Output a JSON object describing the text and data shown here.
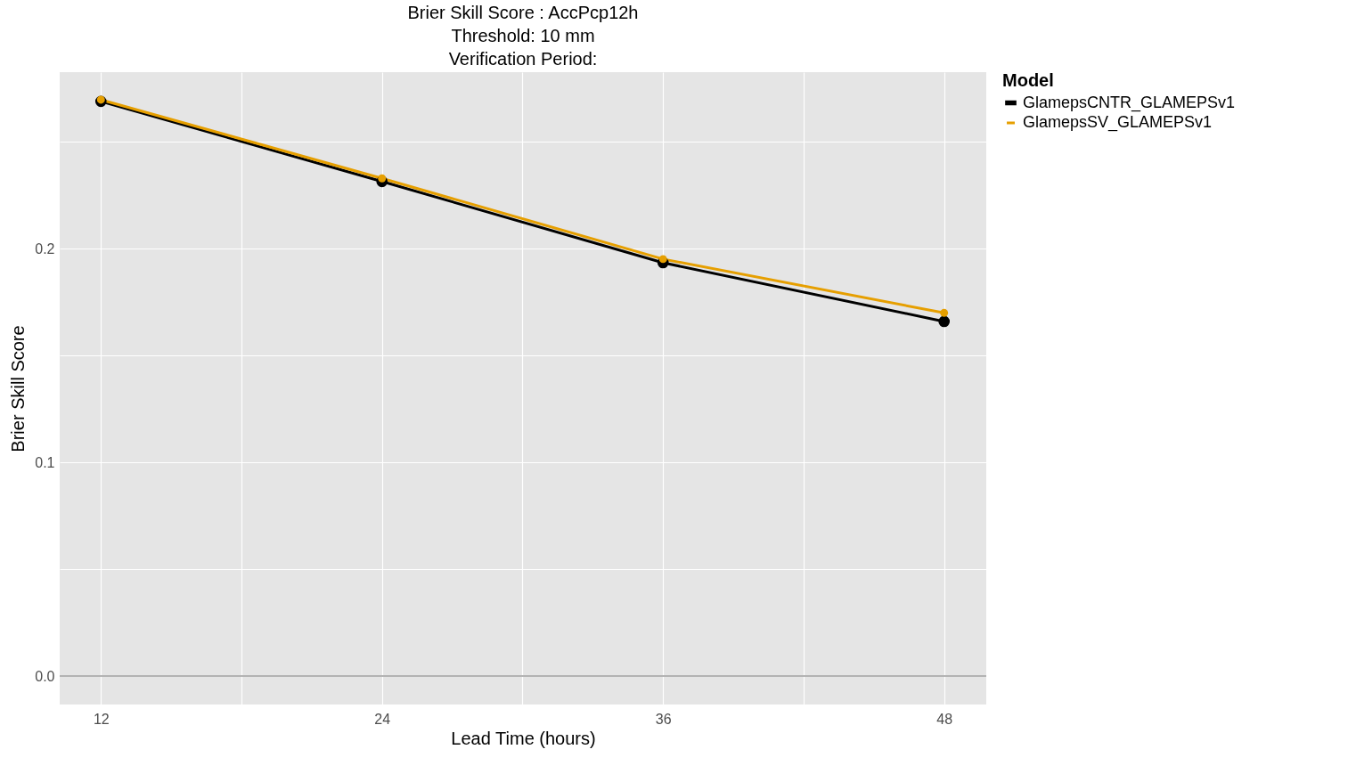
{
  "chart_data": {
    "type": "line",
    "title": [
      "Brier Skill Score : AccPcp12h",
      "Threshold: 10 mm",
      "Verification Period:"
    ],
    "xlabel": "Lead Time (hours)",
    "ylabel": "Brier Skill Score",
    "legend_title": "Model",
    "x": [
      12,
      24,
      36,
      48
    ],
    "series": [
      {
        "name": "GlamepsCNTR_GLAMEPSv1",
        "color": "#000000",
        "values": [
          0.269,
          0.2315,
          0.1935,
          0.166
        ]
      },
      {
        "name": "GlamepsSV_GLAMEPSv1",
        "color": "#e69f00",
        "values": [
          0.2698,
          0.233,
          0.1952,
          0.17
        ]
      }
    ],
    "xlim": [
      10.24,
      49.8
    ],
    "xticks": [
      12,
      {
        "value": 18,
        "label": null
      },
      24,
      {
        "value": 30,
        "label": null
      },
      36,
      {
        "value": 42,
        "label": null
      },
      48
    ],
    "ylim": [
      -0.0133,
      0.2827
    ],
    "yticks": [
      {
        "value": 0,
        "label": "0.0"
      },
      {
        "value": 0.05,
        "label": null
      },
      0.1,
      {
        "value": 0.15,
        "label": null
      },
      0.2,
      {
        "value": 0.25,
        "label": null
      }
    ],
    "ref_lines": [
      {
        "axis": "y",
        "value": 0,
        "color": "#b3b3b3"
      }
    ],
    "grid": true,
    "legend": "right",
    "marker": "circle",
    "line_style": "solid"
  }
}
